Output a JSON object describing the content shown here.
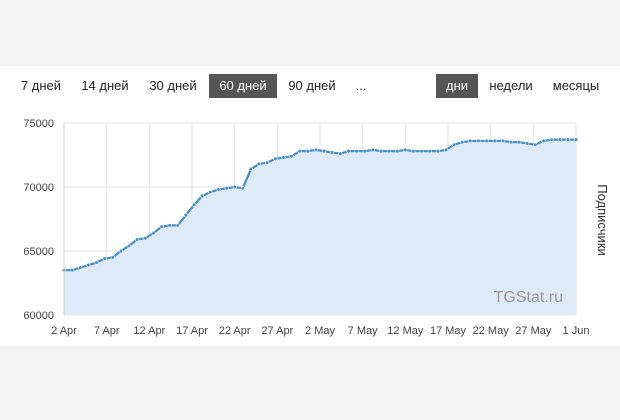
{
  "controls": {
    "ranges": [
      "7 дней",
      "14 дней",
      "30 дней",
      "60 дней",
      "90 дней",
      "..."
    ],
    "active_range": "60 дней",
    "periods": [
      "дни",
      "недели",
      "месяцы"
    ],
    "active_period": "дни"
  },
  "watermark": "TGStat.ru",
  "colors": {
    "line": "#4a8ec2",
    "area": "#dce8f8",
    "grid": "#e6e6e6",
    "active_button": "#555555"
  },
  "chart_data": {
    "type": "area",
    "title": "",
    "xlabel": "",
    "ylabel": "Подписчики",
    "ylim": [
      60000,
      75000
    ],
    "y_ticks": [
      60000,
      65000,
      70000,
      75000
    ],
    "y_tick_labels": [
      "60000",
      "65000",
      "70000",
      "75000"
    ],
    "x_tick_labels": [
      "2 Apr",
      "7 Apr",
      "12 Apr",
      "17 Apr",
      "22 Apr",
      "27 Apr",
      "2 May",
      "7 May",
      "12 May",
      "17 May",
      "22 May",
      "27 May",
      "1 Jun"
    ],
    "x_start": "2 Apr",
    "x_end": "1 Jun",
    "grid": true,
    "series": [
      {
        "values": [
          63500,
          63500,
          63700,
          63900,
          64100,
          64400,
          64500,
          65000,
          65400,
          65900,
          66000,
          66400,
          66900,
          67000,
          67000,
          67800,
          68600,
          69300,
          69600,
          69800,
          69900,
          70000,
          69900,
          71400,
          71800,
          71900,
          72200,
          72300,
          72400,
          72800,
          72800,
          72900,
          72800,
          72700,
          72600,
          72800,
          72800,
          72800,
          72900,
          72800,
          72800,
          72800,
          72900,
          72800,
          72800,
          72800,
          72800,
          72900,
          73300,
          73500,
          73600,
          73600,
          73600,
          73600,
          73600,
          73500,
          73500,
          73400,
          73300,
          73600,
          73700,
          73700,
          73700,
          73700
        ]
      }
    ]
  }
}
